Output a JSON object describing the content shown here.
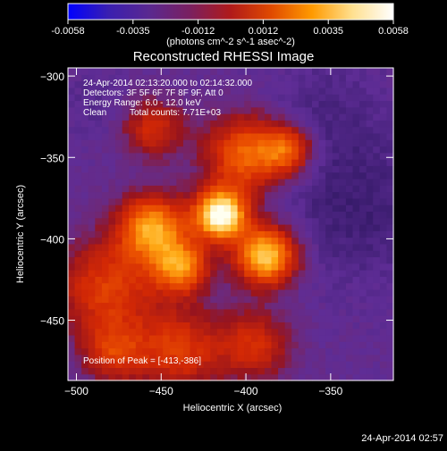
{
  "chart_data": {
    "type": "heatmap",
    "title": "Reconstructed RHESSI Image",
    "xlabel": "Heliocentric X (arcsec)",
    "ylabel": "Heliocentric Y (arcsec)",
    "xlim": [
      -505,
      -313
    ],
    "ylim": [
      -487,
      -295
    ],
    "x_ticks": [
      -500,
      -450,
      -400,
      -350
    ],
    "y_ticks": [
      -300,
      -350,
      -400,
      -450
    ],
    "colorbar": {
      "min": -0.0058,
      "max": 0.0058,
      "ticks": [
        "-0.0058",
        "-0.0035",
        "-0.0012",
        "0.0012",
        "0.0035",
        "0.0058"
      ],
      "units_label": "(photons cm^-2 s^-1 asec^-2)",
      "colors": [
        "#0000ff",
        "#3a1fb0",
        "#5a2890",
        "#7a2060",
        "#b01a1a",
        "#e04a00",
        "#ff9a00",
        "#ffe090",
        "#ffffff"
      ]
    },
    "annotations": {
      "time_range": "24-Apr-2014 02:13:20.000 to 02:14:32.000",
      "detectors": "Detectors: 3F 5F 6F 7F 8F 9F, Att 0",
      "energy_range": "Energy Range: 6.0 - 12.0 keV",
      "method": "Clean",
      "total_counts": "Total counts: 7.71E+03",
      "peak_position": "Position of Peak = [-413,-386]"
    },
    "peak": {
      "x": -413,
      "y": -386
    },
    "sources": [
      {
        "x": -415,
        "y": -385,
        "amp": 1.0,
        "r": 15
      },
      {
        "x": -388,
        "y": -410,
        "amp": 0.82,
        "r": 18
      },
      {
        "x": -455,
        "y": -393,
        "amp": 0.68,
        "r": 20
      },
      {
        "x": -438,
        "y": -417,
        "amp": 0.6,
        "r": 16
      },
      {
        "x": -400,
        "y": -348,
        "amp": 0.55,
        "r": 24
      },
      {
        "x": -375,
        "y": -345,
        "amp": 0.45,
        "r": 15
      },
      {
        "x": -455,
        "y": -332,
        "amp": 0.35,
        "r": 18
      },
      {
        "x": -482,
        "y": -430,
        "amp": 0.42,
        "r": 30
      },
      {
        "x": -440,
        "y": -468,
        "amp": 0.4,
        "r": 26
      },
      {
        "x": -395,
        "y": -465,
        "amp": 0.35,
        "r": 22
      },
      {
        "x": -478,
        "y": -470,
        "amp": 0.35,
        "r": 18
      }
    ],
    "background_level": 0.2,
    "dim_regions": [
      {
        "x": -335,
        "y": -380,
        "amp": 0.25,
        "r": 45
      },
      {
        "x": -355,
        "y": -320,
        "amp": 0.15,
        "r": 35
      },
      {
        "x": -488,
        "y": -318,
        "amp": 0.1,
        "r": 22
      }
    ]
  },
  "footer": {
    "timestamp": "24-Apr-2014 02:57"
  }
}
